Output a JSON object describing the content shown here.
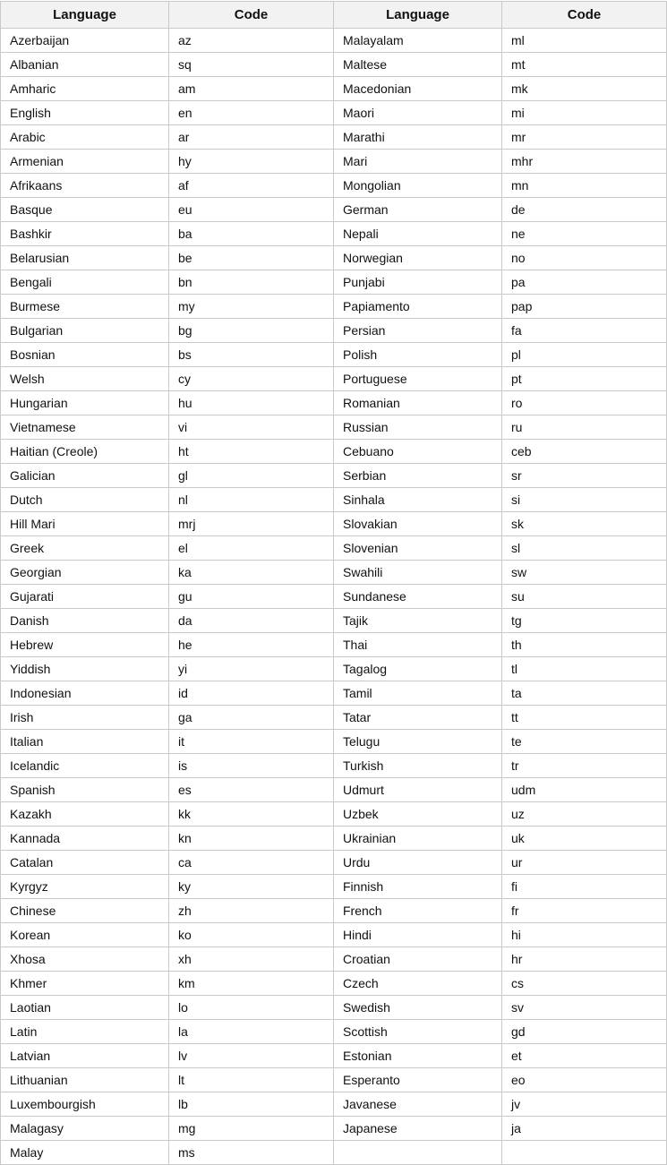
{
  "headers": [
    "Language",
    "Code",
    "Language",
    "Code"
  ],
  "rows": [
    [
      "Azerbaijan",
      "az",
      "Malayalam",
      "ml"
    ],
    [
      "Albanian",
      "sq",
      "Maltese",
      "mt"
    ],
    [
      "Amharic",
      "am",
      "Macedonian",
      "mk"
    ],
    [
      "English",
      "en",
      "Maori",
      "mi"
    ],
    [
      "Arabic",
      "ar",
      "Marathi",
      "mr"
    ],
    [
      "Armenian",
      "hy",
      "Mari",
      "mhr"
    ],
    [
      "Afrikaans",
      "af",
      "Mongolian",
      "mn"
    ],
    [
      "Basque",
      "eu",
      "German",
      "de"
    ],
    [
      "Bashkir",
      "ba",
      "Nepali",
      "ne"
    ],
    [
      "Belarusian",
      "be",
      "Norwegian",
      "no"
    ],
    [
      "Bengali",
      "bn",
      "Punjabi",
      "pa"
    ],
    [
      "Burmese",
      "my",
      "Papiamento",
      "pap"
    ],
    [
      "Bulgarian",
      "bg",
      "Persian",
      "fa"
    ],
    [
      "Bosnian",
      "bs",
      "Polish",
      "pl"
    ],
    [
      "Welsh",
      "cy",
      "Portuguese",
      "pt"
    ],
    [
      "Hungarian",
      "hu",
      "Romanian",
      "ro"
    ],
    [
      "Vietnamese",
      "vi",
      "Russian",
      "ru"
    ],
    [
      "Haitian (Creole)",
      "ht",
      "Cebuano",
      "ceb"
    ],
    [
      "Galician",
      "gl",
      "Serbian",
      "sr"
    ],
    [
      "Dutch",
      "nl",
      "Sinhala",
      "si"
    ],
    [
      "Hill Mari",
      "mrj",
      "Slovakian",
      "sk"
    ],
    [
      "Greek",
      "el",
      "Slovenian",
      "sl"
    ],
    [
      "Georgian",
      "ka",
      "Swahili",
      "sw"
    ],
    [
      "Gujarati",
      "gu",
      "Sundanese",
      "su"
    ],
    [
      "Danish",
      "da",
      "Tajik",
      "tg"
    ],
    [
      "Hebrew",
      "he",
      "Thai",
      "th"
    ],
    [
      "Yiddish",
      "yi",
      "Tagalog",
      "tl"
    ],
    [
      "Indonesian",
      "id",
      "Tamil",
      "ta"
    ],
    [
      "Irish",
      "ga",
      "Tatar",
      "tt"
    ],
    [
      "Italian",
      "it",
      "Telugu",
      "te"
    ],
    [
      "Icelandic",
      "is",
      "Turkish",
      "tr"
    ],
    [
      "Spanish",
      "es",
      "Udmurt",
      "udm"
    ],
    [
      "Kazakh",
      "kk",
      "Uzbek",
      "uz"
    ],
    [
      "Kannada",
      "kn",
      "Ukrainian",
      "uk"
    ],
    [
      "Catalan",
      "ca",
      "Urdu",
      "ur"
    ],
    [
      "Kyrgyz",
      "ky",
      "Finnish",
      "fi"
    ],
    [
      "Chinese",
      "zh",
      "French",
      "fr"
    ],
    [
      "Korean",
      "ko",
      "Hindi",
      "hi"
    ],
    [
      "Xhosa",
      "xh",
      "Croatian",
      "hr"
    ],
    [
      "Khmer",
      "km",
      "Czech",
      "cs"
    ],
    [
      "Laotian",
      "lo",
      "Swedish",
      "sv"
    ],
    [
      "Latin",
      "la",
      "Scottish",
      "gd"
    ],
    [
      "Latvian",
      "lv",
      "Estonian",
      "et"
    ],
    [
      "Lithuanian",
      "lt",
      "Esperanto",
      "eo"
    ],
    [
      "Luxembourgish",
      "lb",
      "Javanese",
      "jv"
    ],
    [
      "Malagasy",
      "mg",
      "Japanese",
      "ja"
    ],
    [
      "Malay",
      "ms",
      "",
      ""
    ]
  ]
}
